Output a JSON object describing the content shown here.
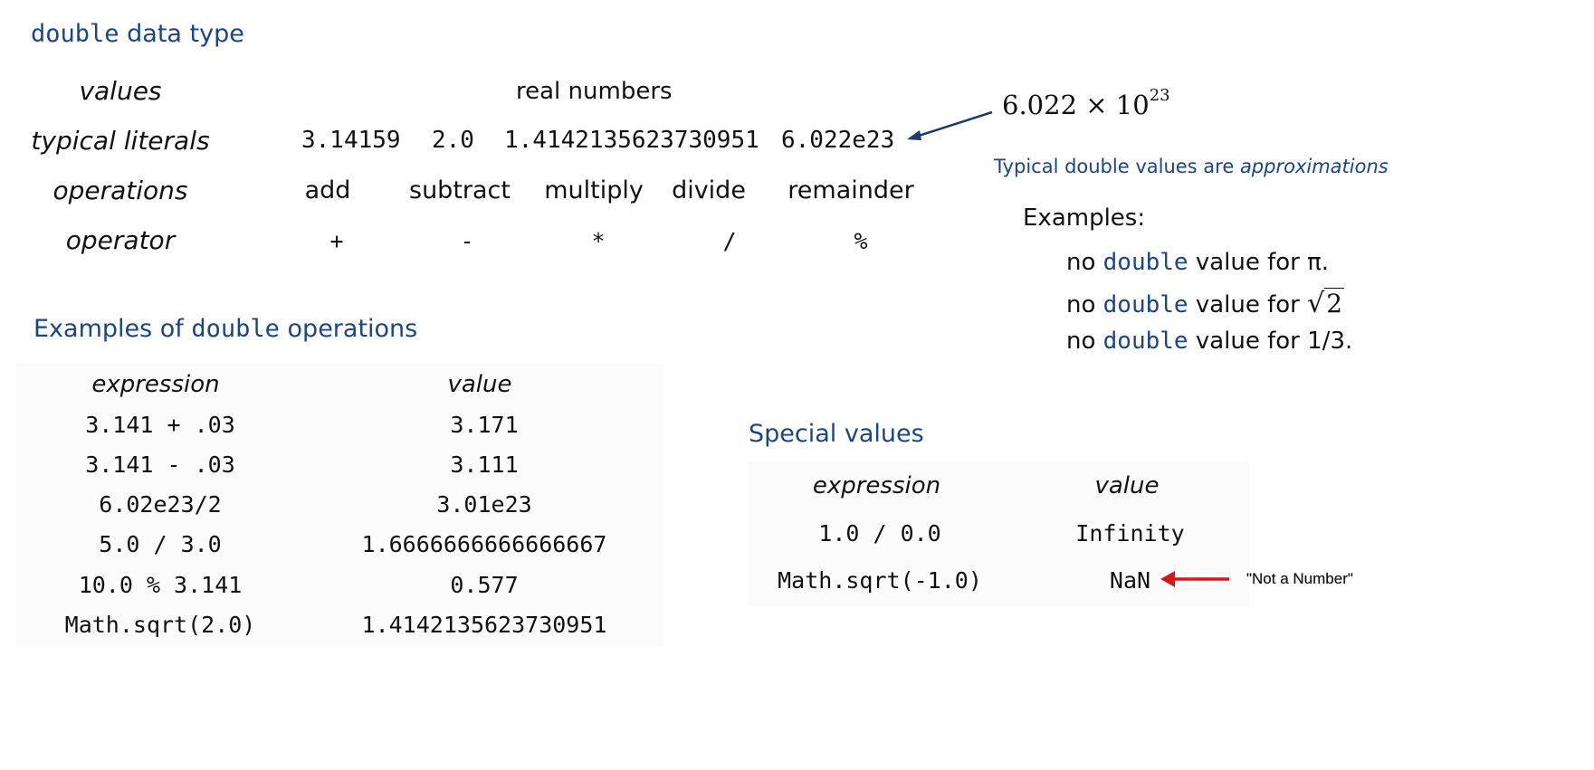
{
  "main_title": {
    "name": "double",
    "suffix": " data type"
  },
  "summary": {
    "labels": {
      "values": "values",
      "literals": "typical literals",
      "operations": "operations",
      "operator": "operator"
    },
    "values_text": "real numbers",
    "literals": [
      "3.14159",
      "2.0",
      "1.4142135623730951",
      "6.022e23"
    ],
    "operations": [
      "add",
      "subtract",
      "multiply",
      "divide",
      "remainder"
    ],
    "operators": [
      "+",
      "-",
      "*",
      "/",
      "%"
    ]
  },
  "scientific": {
    "mantissa": "6.022",
    "times": "×",
    "base": "10",
    "exponent": "23"
  },
  "approx": {
    "lead": "Typical double values are ",
    "emph": "approximations",
    "examples_label": "Examples:",
    "items": [
      {
        "pre": "no ",
        "kw": "double",
        "post": " value for π."
      },
      {
        "pre": "no ",
        "kw": "double",
        "post": " value for ",
        "radical": "√",
        "radicand": "2"
      },
      {
        "pre": "no ",
        "kw": "double",
        "post": " value for 1/3."
      }
    ]
  },
  "ops_examples": {
    "title": {
      "pre": "Examples of ",
      "kw": "double",
      "post": " operations"
    },
    "headers": {
      "expression": "expression",
      "value": "value"
    },
    "rows": [
      {
        "expression": "3.141 + .03",
        "value": "3.171"
      },
      {
        "expression": "3.141 - .03",
        "value": "3.111"
      },
      {
        "expression": "6.02e23/2",
        "value": "3.01e23"
      },
      {
        "expression": "5.0 / 3.0",
        "value": "1.6666666666666667"
      },
      {
        "expression": "10.0 % 3.141",
        "value": "0.577"
      },
      {
        "expression": "Math.sqrt(2.0)",
        "value": "1.4142135623730951"
      }
    ]
  },
  "special": {
    "title": "Special values",
    "headers": {
      "expression": "expression",
      "value": "value"
    },
    "rows": [
      {
        "expression": "1.0 / 0.0",
        "value": "Infinity"
      },
      {
        "expression": "Math.sqrt(-1.0)",
        "value": "NaN"
      }
    ],
    "note": "\"Not a Number\"",
    "arrow_color": "#d11a1a"
  },
  "colors": {
    "accent": "#1b4585",
    "arrow_blue": "#1b3a6b",
    "arrow_red": "#d11a1a"
  }
}
